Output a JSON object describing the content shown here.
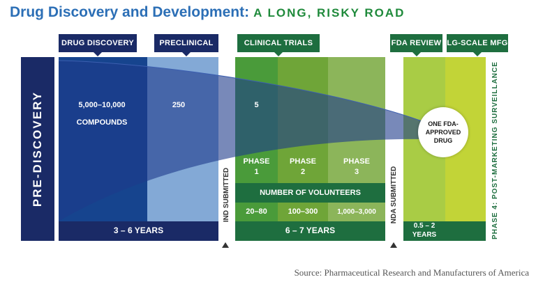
{
  "title": "Drug Discovery and Development:",
  "subtitle": "A LONG, RISKY ROAD",
  "stage_tabs": {
    "drug_discovery": "DRUG DISCOVERY",
    "preclinical": "PRECLINICAL",
    "clinical_trials": "CLINICAL TRIALS",
    "fda_review": "FDA REVIEW",
    "lg_scale_mfg": "LG-SCALE MFG"
  },
  "pre_discovery": "PRE-DISCOVERY",
  "compounds": {
    "count": "5,000–10,000",
    "unit": "COMPOUNDS",
    "preclinical_count": "250",
    "clinical_count": "5"
  },
  "phases": [
    {
      "label": "PHASE",
      "num": "1",
      "volunteers": "20–80"
    },
    {
      "label": "PHASE",
      "num": "2",
      "volunteers": "100–300"
    },
    {
      "label": "PHASE",
      "num": "3",
      "volunteers": "1,000–3,000"
    }
  ],
  "volunteers_label": "NUMBER OF VOLUNTEERS",
  "durations": {
    "discovery": "3 – 6 YEARS",
    "clinical": "6 – 7 YEARS",
    "fda": "0.5 – 2 YEARS"
  },
  "milestones": {
    "ind": "IND SUBMITTED",
    "nda": "NDA SUBMITTED",
    "phase4": "PHASE 4: POST-MARKETING SURVEILLANCE"
  },
  "result": "ONE FDA-APPROVED DRUG",
  "source": "Source: Pharmaceutical Research and Manufacturers of America",
  "colors": {
    "navy": "#1a2a66",
    "discovery_blue": "#16448e",
    "preclinical_blue": "#83a9d6",
    "title_blue": "#2c6fb6",
    "green_dark": "#1e6e3f",
    "green_phase1": "#4a9b3a",
    "green_phase2": "#6fa538",
    "green_phase3": "#8cb55a",
    "lime_fda": "#a9cc45",
    "lime_mfg": "#c2d437"
  }
}
